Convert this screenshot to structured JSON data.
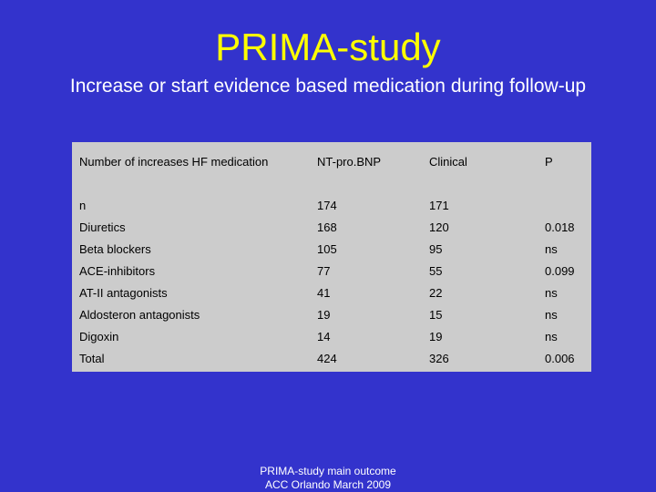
{
  "title": "PRIMA-study",
  "subtitle": "Increase or start evidence based medication during follow-up",
  "table": {
    "headers": [
      "Number of increases HF medication",
      "NT-pro.BNP",
      "Clinical",
      "P"
    ],
    "rows": [
      [
        "n",
        "174",
        "171",
        ""
      ],
      [
        "Diuretics",
        "168",
        "120",
        "0.018"
      ],
      [
        "Beta blockers",
        "105",
        "95",
        "ns"
      ],
      [
        "ACE-inhibitors",
        "77",
        "55",
        "0.099"
      ],
      [
        "AT-II antagonists",
        "41",
        "22",
        "ns"
      ],
      [
        "Aldosteron antagonists",
        "19",
        "15",
        "ns"
      ],
      [
        "Digoxin",
        "14",
        "19",
        "ns"
      ],
      [
        "Total",
        "424",
        "326",
        "0.006"
      ]
    ]
  },
  "footer": {
    "line1": "PRIMA-study main outcome",
    "line2": "ACC Orlando March 2009"
  },
  "colors": {
    "background": "#3333cc",
    "title": "#ffff00",
    "text": "#ffffff",
    "table_background": "#cccccc"
  }
}
